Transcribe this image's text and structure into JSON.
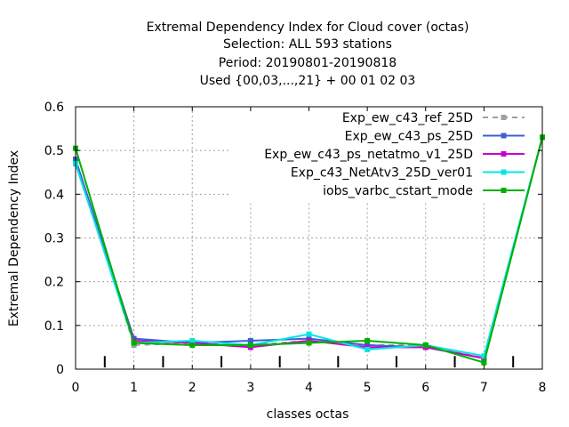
{
  "chart_data": {
    "type": "line",
    "title_lines": [
      "Extremal Dependency Index  for Cloud cover (octas)",
      "Selection: ALL    593 stations",
      "Period: 20190801-20190818",
      "Used {00,03,...,21} + 00 01 02 03"
    ],
    "xlabel": "classes octas",
    "ylabel": "Extremal Dependency Index",
    "xlim": [
      0,
      8
    ],
    "ylim": [
      0,
      0.6
    ],
    "xticks": [
      0,
      1,
      2,
      3,
      4,
      5,
      6,
      7,
      8
    ],
    "yticks": [
      0,
      0.1,
      0.2,
      0.3,
      0.4,
      0.5,
      0.6
    ],
    "ytick_labels": [
      "0",
      "0.1",
      "0.2",
      "0.3",
      "0.4",
      "0.5",
      "0.6"
    ],
    "grid": true,
    "legend_position": "top-right",
    "x": [
      0,
      1,
      2,
      3,
      4,
      5,
      6,
      7,
      8
    ],
    "series": [
      {
        "name": "Exp_ew_c43_ref_25D",
        "color": "#a0a0a0",
        "dashed": true,
        "values": [
          0.48,
          0.055,
          0.06,
          0.055,
          0.065,
          0.055,
          0.055,
          0.025,
          0.53
        ]
      },
      {
        "name": "Exp_ew_c43_ps_25D",
        "color": "#3c5fd2",
        "dashed": false,
        "values": [
          0.48,
          0.07,
          0.06,
          0.065,
          0.07,
          0.055,
          0.05,
          0.025,
          0.53
        ]
      },
      {
        "name": "Exp_ew_c43_ps_netatmo_v1_25D",
        "color": "#cc00cc",
        "dashed": false,
        "values": [
          0.47,
          0.065,
          0.06,
          0.05,
          0.065,
          0.05,
          0.05,
          0.025,
          0.53
        ]
      },
      {
        "name": "Exp_c43_NetAtv3_25D_ver01",
        "color": "#00e5e5",
        "dashed": false,
        "values": [
          0.47,
          0.06,
          0.065,
          0.055,
          0.08,
          0.045,
          0.055,
          0.03,
          0.53
        ]
      },
      {
        "name": "iobs_varbc_cstart_mode",
        "color": "#00b000",
        "dashed": false,
        "values": [
          0.505,
          0.06,
          0.055,
          0.055,
          0.06,
          0.065,
          0.055,
          0.015,
          0.53
        ]
      }
    ],
    "impulses": {
      "x": [
        0.5,
        1.5,
        2.5,
        3.5,
        4.5,
        5.5,
        6.5,
        7.5
      ],
      "height": 0.03,
      "color": "#000000"
    }
  }
}
